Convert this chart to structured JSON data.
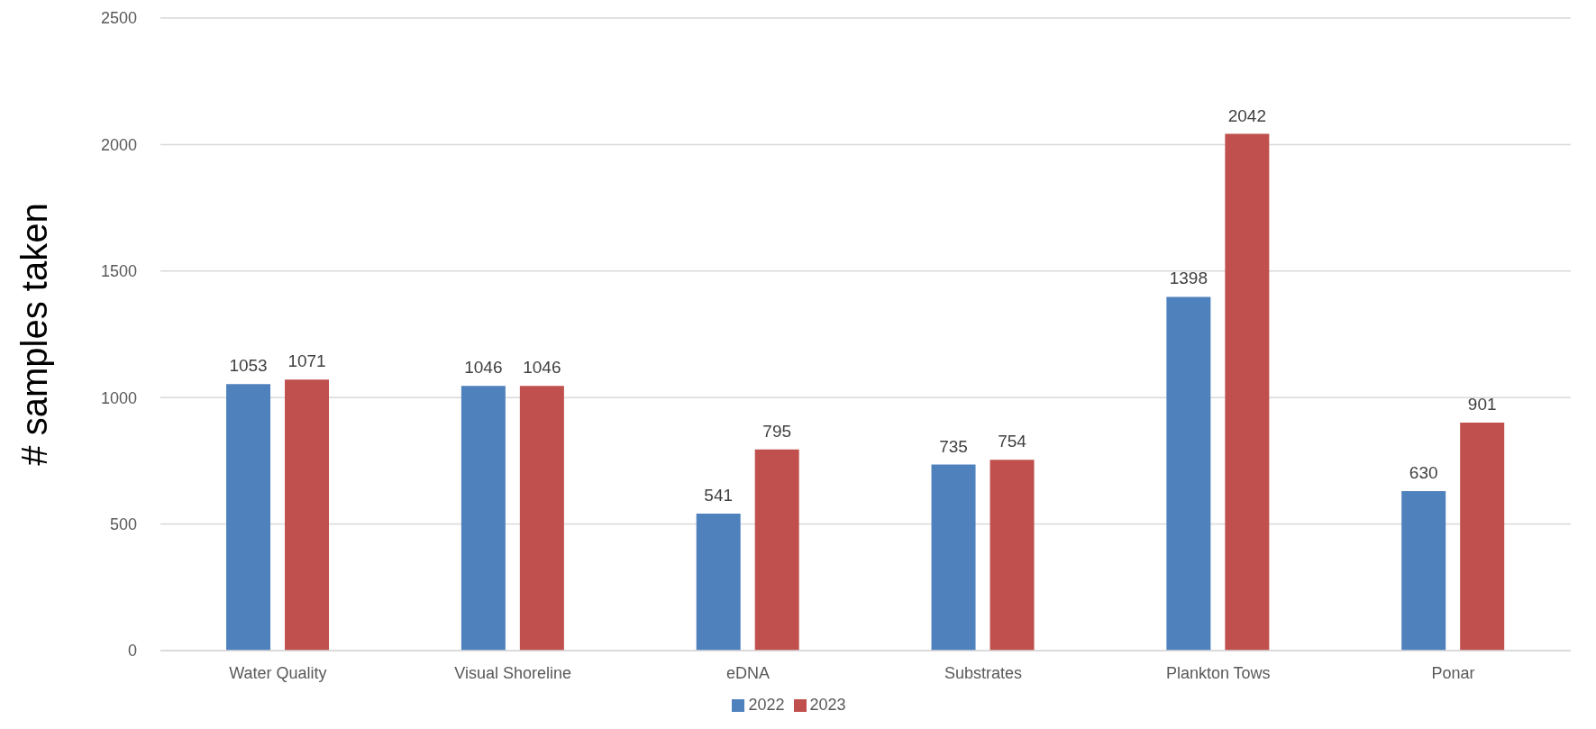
{
  "chart_data": {
    "type": "bar",
    "ylabel": "# samples taken",
    "categories": [
      "Water Quality",
      "Visual Shoreline",
      "eDNA",
      "Substrates",
      "Plankton Tows",
      "Ponar"
    ],
    "series": [
      {
        "name": "2022",
        "color": "#4f81bd",
        "values": [
          1053,
          1046,
          541,
          735,
          1398,
          630
        ]
      },
      {
        "name": "2023",
        "color": "#c0504d",
        "values": [
          1071,
          1046,
          795,
          754,
          2042,
          901
        ]
      }
    ],
    "ylim": [
      0,
      2500
    ],
    "yticks": [
      0,
      500,
      1000,
      1500,
      2000,
      2500
    ],
    "grid": "y",
    "legend": "bottom",
    "data_labels": true
  }
}
